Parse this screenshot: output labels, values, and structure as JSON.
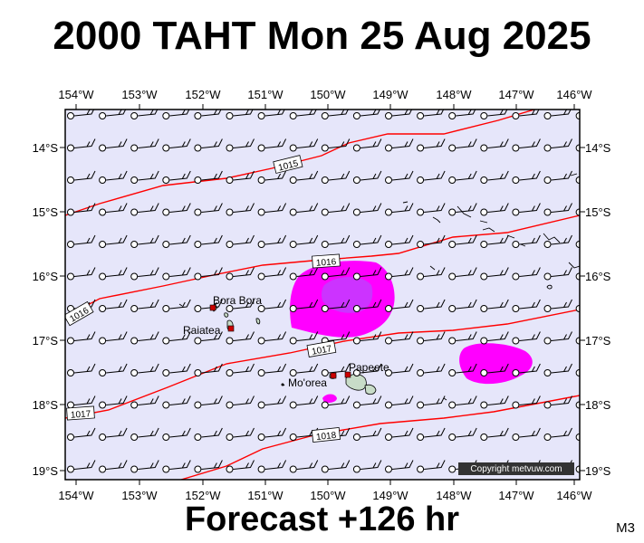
{
  "header": {
    "title": "2000 TAHT Mon 25 Aug 2025"
  },
  "footer": {
    "forecast": "Forecast +126 hr",
    "model_code": "M3"
  },
  "map": {
    "copyright": "Copyright metvuw.com",
    "background_color": "#e6e6fa",
    "isobar_color": "#ff0000",
    "rain_colors": {
      "light": "#ff00ff",
      "heavy": "#cc33ff"
    },
    "lon_ticks": [
      "154°W",
      "153°W",
      "152°W",
      "151°W",
      "150°W",
      "149°W",
      "148°W",
      "147°W",
      "146°W"
    ],
    "lat_ticks": [
      "14°S",
      "15°S",
      "16°S",
      "17°S",
      "18°S",
      "19°S"
    ],
    "isobar_labels": [
      "1015",
      "1016",
      "1017",
      "1018",
      "1016",
      "1017"
    ],
    "places": [
      "Bora Bora",
      "Raiatea",
      "Mo'orea",
      "Papeete"
    ],
    "wind_barb_grid": {
      "columns": 17,
      "rows": 12,
      "lon_range": [
        -154,
        -146
      ],
      "lat_range": [
        -13.5,
        -19
      ]
    }
  }
}
